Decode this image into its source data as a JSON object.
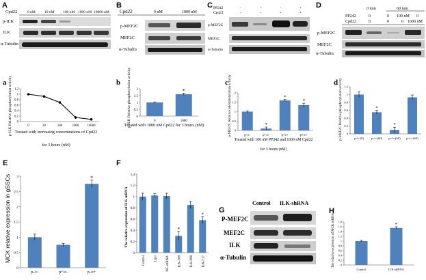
{
  "figure": {
    "blot_A": {
      "panel": "A",
      "conditions_label": "Cpd22",
      "conditions": [
        "0 nM",
        "10 nM",
        "100 nM",
        "1000 nM",
        "10000 nM"
      ],
      "rows": [
        "p-ILK",
        "ILK",
        "α-Tubulin"
      ]
    },
    "blot_B": {
      "panel": "B",
      "conditions_label": "Cpd22",
      "conditions": [
        "0 nM",
        "1000 nM"
      ],
      "rows": [
        "p-MEF2C",
        "MEF2C",
        "α-Tubulin"
      ]
    },
    "blot_C": {
      "panel": "C",
      "treatments": [
        {
          "label": "PP242",
          "values": [
            "-",
            "+",
            "-",
            "+"
          ]
        },
        {
          "label": "Cpd22",
          "values": [
            "-",
            "-",
            "+",
            "+"
          ]
        }
      ],
      "rows": [
        "p-MEF2C",
        "MEF2C",
        "α-Tubulin"
      ]
    },
    "blot_D": {
      "panel": "D",
      "time_labels": [
        "0 min",
        "60 min"
      ],
      "treatments": [
        {
          "label": "PP242",
          "values": [
            "0",
            "0",
            "100 nM",
            "0"
          ]
        },
        {
          "label": "Cpd22",
          "values": [
            "0",
            "0",
            "0",
            "1000 nM"
          ]
        }
      ],
      "rows": [
        "p-MEF2C",
        "MEF2C",
        "α-Tubulin"
      ]
    },
    "blot_G": {
      "panel": "G",
      "conditions": [
        "Control",
        "ILK-shRNA"
      ],
      "rows": [
        "P-MEF2C",
        "MEF2C",
        "ILK",
        "α-Tubulin"
      ]
    }
  },
  "chart_data": [
    {
      "panel": "a",
      "type": "line",
      "x": [
        0,
        10,
        100,
        1000,
        10000
      ],
      "x_tick_labels": [
        "0",
        "10",
        "100",
        "1000",
        "10000"
      ],
      "y": [
        1.0,
        0.92,
        0.7,
        0.15,
        0.08
      ],
      "error": [
        0.02,
        0.04,
        0.02,
        0.05,
        0.03
      ],
      "ylim": [
        0,
        1.2
      ],
      "y_ticks": [
        "0",
        "0.2",
        "0.4",
        "0.6",
        "0.8",
        "1",
        "1.2"
      ],
      "ylabel": "p-ILK Relative phosphorylation activity",
      "xlabel": "Treated with increasing concentrations of Cpd22",
      "xlabel2": "for 3 hours (nM)"
    },
    {
      "panel": "b",
      "type": "bar",
      "categories": [
        "0",
        "1000"
      ],
      "values": [
        1.0,
        1.6
      ],
      "error": [
        0.04,
        0.08
      ],
      "significance": [
        "",
        "*"
      ],
      "ylim": [
        0,
        2
      ],
      "y_ticks": [
        "0",
        "0.5",
        "1",
        "1.5",
        "2"
      ],
      "ylabel": "p-ILK Relative phosphorylation activity",
      "xlabel": "Treated with 1000 nM Cpd22 for 3 hours (nM)"
    },
    {
      "panel": "c",
      "type": "bar",
      "categories": [
        "p-/c-",
        "p+/c-",
        "p-/c+",
        "p+/c+"
      ],
      "values": [
        1.0,
        0.1,
        1.6,
        1.35
      ],
      "error": [
        0.04,
        0.08,
        0.05,
        0.1
      ],
      "significance": [
        "",
        "*",
        "*",
        "*"
      ],
      "ylim": [
        0,
        2
      ],
      "y_ticks": [
        "0",
        "0.5",
        "1",
        "1.5",
        "2"
      ],
      "ylabel": "p-MEF2C Relative phosphorylation activity",
      "xlabel": "Treated with 100 nM PP242 and 1000 nM Cpd22",
      "xlabel2": "for 3 hours (nM)"
    },
    {
      "panel": "d",
      "type": "bar",
      "categories": [
        "p-/c-(0)",
        "p-/c-(60)",
        "p+/c-(60)",
        "p-/c+(60)"
      ],
      "values": [
        1.0,
        0.55,
        0.1,
        0.93
      ],
      "error": [
        0.07,
        0.05,
        0.07,
        0.06
      ],
      "significance": [
        "",
        "*",
        "*",
        ""
      ],
      "ylim": [
        0,
        1.2
      ],
      "y_ticks": [
        "0",
        "0.2",
        "0.4",
        "0.6",
        "0.8",
        "1",
        "1.2"
      ],
      "ylabel": "p-MEF2C Relative phosphorylation activity"
    },
    {
      "panel": "E",
      "type": "bar",
      "categories": [
        "p-/c-",
        "p+/c-",
        "p-/c+"
      ],
      "values": [
        1.0,
        0.75,
        2.75
      ],
      "error": [
        0.1,
        0.05,
        0.12
      ],
      "significance": [
        "",
        "",
        "*"
      ],
      "ylim": [
        0,
        3
      ],
      "y_ticks": [
        "0",
        "0.5",
        "1",
        "1.5",
        "2",
        "2.5",
        "3"
      ],
      "ylabel": "MCK relative expression in gSSCs"
    },
    {
      "panel": "F",
      "type": "bar",
      "categories": [
        "Control",
        "Lipo",
        "NC-shRNA",
        "ILK-108",
        "ILK-998",
        "ILK-717"
      ],
      "values": [
        1.0,
        1.02,
        1.01,
        0.3,
        0.85,
        0.58
      ],
      "error": [
        0.06,
        0.03,
        0.05,
        0.08,
        0.06,
        0.06
      ],
      "significance": [
        "",
        "",
        "",
        "*",
        "",
        "*"
      ],
      "ylim": [
        0,
        1.4
      ],
      "y_ticks": [
        "0",
        "0.2",
        "0.4",
        "0.6",
        "0.8",
        "1",
        "1.2",
        "1.4"
      ],
      "ylabel": "The relative expression of ILK mRNA"
    },
    {
      "panel": "H",
      "type": "bar",
      "categories": [
        "Control",
        "ILK-shRNA"
      ],
      "values": [
        1.0,
        1.55
      ],
      "error": [
        0.03,
        0.05
      ],
      "significance": [
        "",
        "*"
      ],
      "ylim": [
        0,
        1.8
      ],
      "y_ticks": [
        "0",
        "0.2",
        "0.4",
        "0.6",
        "0.8",
        "1",
        "1.2",
        "1.4",
        "1.6",
        "1.8"
      ],
      "ylabel": "The relative expression of MCK mRNA"
    }
  ]
}
